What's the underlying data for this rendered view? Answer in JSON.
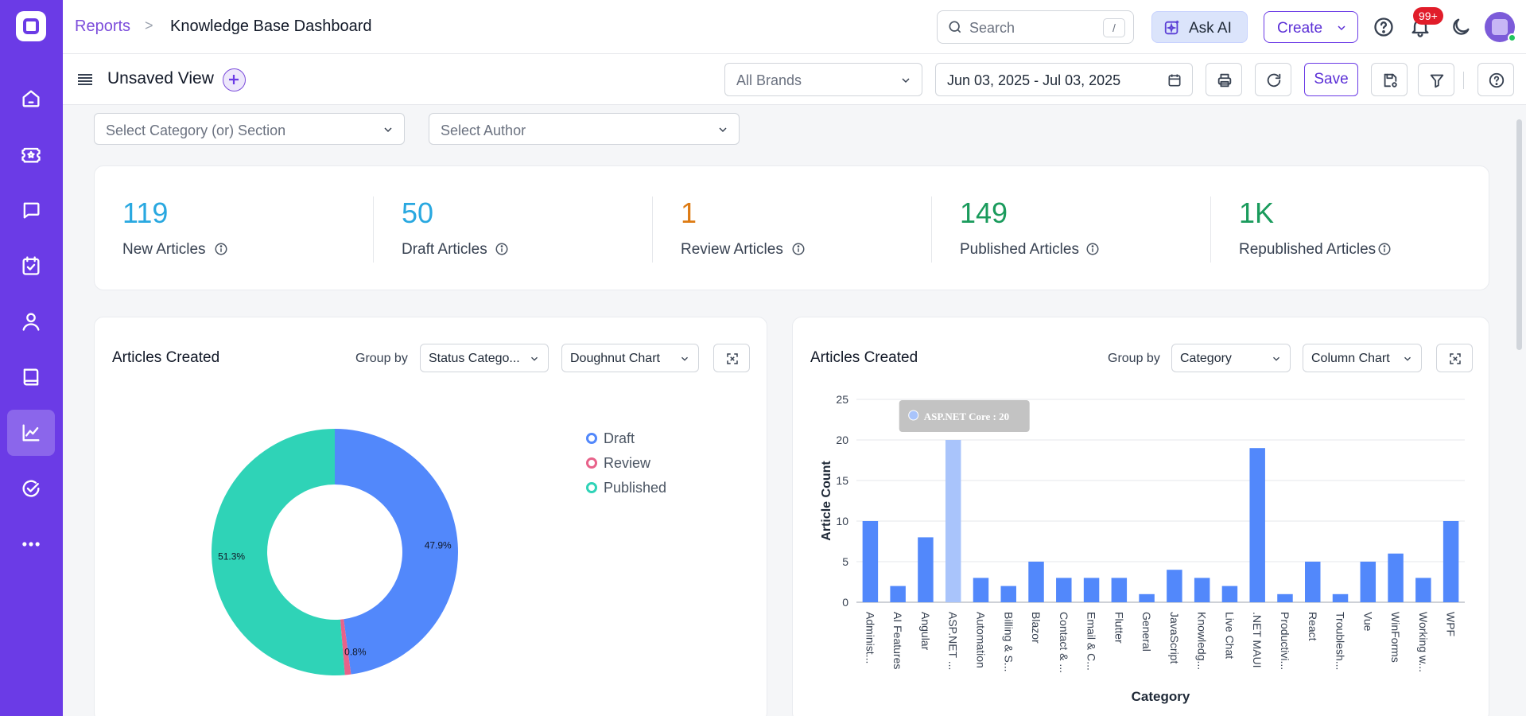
{
  "breadcrumb": {
    "parent": "Reports",
    "separator": ">",
    "title": "Knowledge Base Dashboard"
  },
  "header": {
    "search_placeholder": "Search",
    "search_shortcut": "/",
    "ask_ai_label": "Ask AI",
    "create_label": "Create",
    "notification_count": "99+"
  },
  "toolbar": {
    "view_title": "Unsaved View",
    "brand_select": "All Brands",
    "date_range": "Jun 03, 2025 - Jul 03, 2025",
    "save_label": "Save"
  },
  "filters": {
    "category_placeholder": "Select Category (or) Section",
    "author_placeholder": "Select Author"
  },
  "stats": [
    {
      "value": "119",
      "label": "New Articles",
      "color": "#29a8e0"
    },
    {
      "value": "50",
      "label": "Draft Articles",
      "color": "#29a8e0"
    },
    {
      "value": "1",
      "label": "Review Articles",
      "color": "#dd7a12"
    },
    {
      "value": "149",
      "label": "Published Articles",
      "color": "#1a9b5c"
    },
    {
      "value": "1K",
      "label": "Republished Articles",
      "color": "#1a9b5c"
    }
  ],
  "left_panel": {
    "title": "Articles Created",
    "group_by_label": "Group by",
    "group_by_value": "Status Catego...",
    "chart_type_value": "Doughnut Chart"
  },
  "right_panel": {
    "title": "Articles Created",
    "group_by_label": "Group by",
    "group_by_value": "Category",
    "chart_type_value": "Column Chart"
  },
  "chart_data": [
    {
      "type": "pie",
      "categories": [
        "Draft",
        "Review",
        "Published"
      ],
      "values": [
        47.9,
        0.8,
        51.3
      ],
      "labels": [
        "47.9%",
        "0.8%",
        "51.3%"
      ],
      "colors": [
        "#5288fb",
        "#e8628a",
        "#2fd3b7"
      ],
      "legend": "right"
    },
    {
      "type": "bar",
      "categories": [
        "Administ...",
        "AI Features",
        "Angular",
        "ASP.NET ...",
        "Automation",
        "Billing & S...",
        "Blazor",
        "Contact & ...",
        "Email & C...",
        "Flutter",
        "General",
        "JavaScript",
        "Knowledg...",
        "Live Chat",
        ".NET MAUI",
        "Productivi...",
        "React",
        "Troublesh...",
        "Vue",
        "WinForms",
        "Working w...",
        "WPF"
      ],
      "values": [
        10,
        2,
        8,
        20,
        3,
        2,
        5,
        3,
        3,
        3,
        1,
        4,
        3,
        2,
        19,
        1,
        5,
        1,
        5,
        6,
        3,
        10
      ],
      "xlabel": "Category",
      "ylabel": "Article Count",
      "ylim": [
        0,
        25
      ],
      "yticks": [
        0,
        5,
        10,
        15,
        20,
        25
      ],
      "color": "#5288fb",
      "highlight_color": "#a9c4fb",
      "highlight_index": 3,
      "tooltip": "ASP.NET Core : 20",
      "grid": true
    }
  ]
}
